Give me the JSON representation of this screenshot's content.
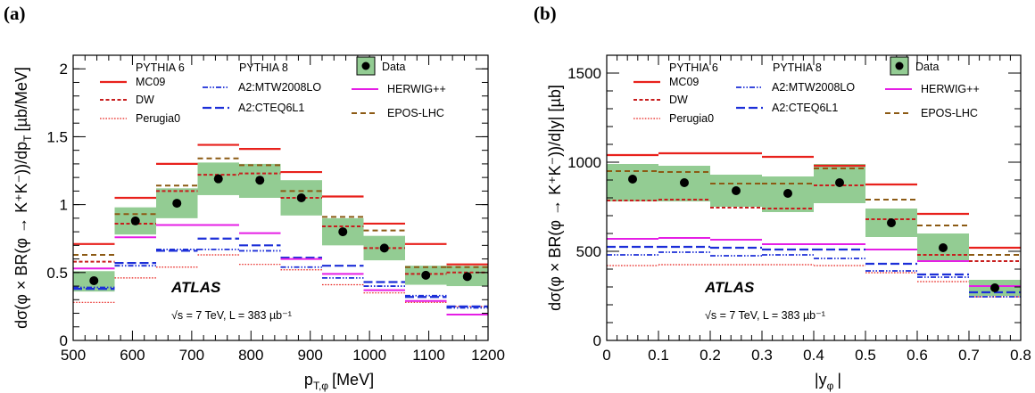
{
  "chart_data": [
    {
      "type": "bar",
      "panel_label": "(a)",
      "xlabel": "p",
      "xlabel_sub": "T,φ",
      "xlabel_unit": "[MeV]",
      "ylabel": "dσ(φ × BR(φ → K⁺K⁻))/dp",
      "ylabel_sub": "T",
      "ylabel_unit": "[µb/MeV]",
      "xlim": [
        500,
        1200
      ],
      "ylim": [
        0,
        2.1
      ],
      "xticks": [
        "500",
        "600",
        "700",
        "800",
        "900",
        "1000",
        "1100",
        "1200"
      ],
      "xtick_values": [
        500,
        600,
        700,
        800,
        900,
        1000,
        1100,
        1200
      ],
      "yticks": [
        "0",
        "0.5",
        "1",
        "1.5",
        "2"
      ],
      "ytick_values": [
        0,
        0.5,
        1,
        1.5,
        2
      ],
      "bin_edges": [
        500,
        570,
        640,
        710,
        780,
        850,
        920,
        990,
        1060,
        1130,
        1200
      ],
      "data": {
        "x": [
          535,
          605,
          675,
          745,
          815,
          885,
          955,
          1025,
          1095,
          1165
        ],
        "y": [
          0.44,
          0.88,
          1.01,
          1.19,
          1.18,
          1.05,
          0.8,
          0.68,
          0.48,
          0.47
        ],
        "band_low": [
          0.36,
          0.78,
          0.9,
          1.07,
          1.05,
          0.92,
          0.7,
          0.59,
          0.41,
          0.4
        ],
        "band_high": [
          0.51,
          0.98,
          1.12,
          1.31,
          1.3,
          1.18,
          0.9,
          0.77,
          0.55,
          0.55
        ]
      },
      "series": [
        {
          "name": "MC09",
          "values": [
            0.71,
            1.05,
            1.3,
            1.44,
            1.41,
            1.24,
            1.06,
            0.86,
            0.71,
            0.56
          ]
        },
        {
          "name": "DW",
          "values": [
            0.58,
            0.86,
            1.1,
            1.22,
            1.23,
            1.05,
            0.84,
            0.68,
            0.49,
            0.5
          ]
        },
        {
          "name": "Perugia0",
          "values": [
            0.28,
            0.46,
            0.54,
            0.63,
            0.56,
            0.52,
            0.41,
            0.35,
            0.28,
            0.25
          ]
        },
        {
          "name": "A2:MTW2008LO",
          "values": [
            0.39,
            0.55,
            0.67,
            0.67,
            0.66,
            0.54,
            0.46,
            0.4,
            0.33,
            0.24
          ]
        },
        {
          "name": "A2:CTEQ6L1",
          "values": [
            0.38,
            0.57,
            0.66,
            0.75,
            0.7,
            0.61,
            0.55,
            0.43,
            0.32,
            0.25
          ]
        },
        {
          "name": "HERWIG++",
          "values": [
            0.53,
            0.76,
            0.85,
            0.85,
            0.79,
            0.6,
            0.49,
            0.37,
            0.29,
            0.19
          ]
        },
        {
          "name": "EPOS-LHC",
          "values": [
            0.63,
            0.93,
            1.14,
            1.34,
            1.29,
            1.1,
            0.91,
            0.81,
            0.54,
            0.54
          ]
        }
      ],
      "legend": {
        "pythia6_header": "PYTHIA 6",
        "pythia8_header": "PYTHIA 8",
        "data_label": "Data",
        "labels": [
          "MC09",
          "DW",
          "Perugia0",
          "A2:MTW2008LO",
          "A2:CTEQ6L1",
          "HERWIG++",
          "EPOS-LHC"
        ]
      },
      "annotation": {
        "atlas": "ATLAS",
        "energy": "√s = 7 TeV, L = 383 µb⁻¹"
      },
      "grid": false
    },
    {
      "type": "bar",
      "panel_label": "(b)",
      "xlabel": "|y",
      "xlabel_sub": "φ",
      "xlabel_unit": "|",
      "ylabel": "dσ(φ × BR(φ → K⁺K⁻))/d|y| [µb]",
      "xlim": [
        0,
        0.8
      ],
      "ylim": [
        0,
        1600
      ],
      "xticks": [
        "0",
        "0.1",
        "0.2",
        "0.3",
        "0.4",
        "0.5",
        "0.6",
        "0.7",
        "0.8"
      ],
      "xtick_values": [
        0,
        0.1,
        0.2,
        0.3,
        0.4,
        0.5,
        0.6,
        0.7,
        0.8
      ],
      "yticks": [
        "0",
        "500",
        "1000",
        "1500"
      ],
      "ytick_values": [
        0,
        500,
        1000,
        1500
      ],
      "bin_edges": [
        0,
        0.1,
        0.2,
        0.3,
        0.4,
        0.5,
        0.6,
        0.7,
        0.8
      ],
      "data": {
        "x": [
          0.05,
          0.15,
          0.25,
          0.35,
          0.45,
          0.55,
          0.65,
          0.75
        ],
        "y": [
          905,
          885,
          840,
          825,
          885,
          660,
          520,
          295
        ],
        "band_low": [
          780,
          780,
          750,
          720,
          770,
          580,
          440,
          250
        ],
        "band_high": [
          990,
          980,
          930,
          920,
          990,
          740,
          600,
          340
        ]
      },
      "series": [
        {
          "name": "MC09",
          "values": [
            1040,
            1050,
            1050,
            1030,
            980,
            875,
            710,
            520
          ]
        },
        {
          "name": "DW",
          "values": [
            785,
            790,
            745,
            740,
            870,
            680,
            480,
            445
          ]
        },
        {
          "name": "Perugia0",
          "values": [
            420,
            425,
            425,
            425,
            420,
            380,
            330,
            245
          ]
        },
        {
          "name": "A2:MTW2008LO",
          "values": [
            480,
            495,
            475,
            480,
            460,
            390,
            355,
            245
          ]
        },
        {
          "name": "A2:CTEQ6L1",
          "values": [
            525,
            525,
            520,
            510,
            510,
            430,
            370,
            270
          ]
        },
        {
          "name": "HERWIG++",
          "values": [
            570,
            575,
            565,
            540,
            540,
            510,
            445,
            305
          ]
        },
        {
          "name": "EPOS-LHC",
          "values": [
            950,
            945,
            880,
            880,
            965,
            790,
            645,
            480
          ]
        }
      ],
      "legend": {
        "pythia6_header": "PYTHIA 6",
        "pythia8_header": "PYTHIA 8",
        "data_label": "Data",
        "labels": [
          "MC09",
          "DW",
          "Perugia0",
          "A2:MTW2008LO",
          "A2:CTEQ6L1",
          "HERWIG++",
          "EPOS-LHC"
        ]
      },
      "annotation": {
        "atlas": "ATLAS",
        "energy": "√s = 7 TeV, L = 383 µb⁻¹"
      },
      "grid": false
    }
  ],
  "colors": {
    "MC09": "#e8211c",
    "DW": "#c81e1e",
    "Perugia0": "#e8211c",
    "A2:MTW2008LO": "#1c2fd8",
    "A2:CTEQ6L1": "#1c2fd8",
    "HERWIG++": "#e51ee5",
    "EPOS-LHC": "#8c5a14",
    "band": "#93cc93",
    "data": "#000000"
  }
}
